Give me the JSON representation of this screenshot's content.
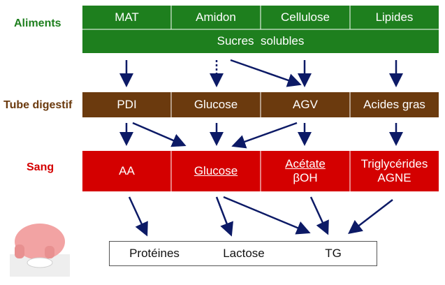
{
  "rows": {
    "aliments": {
      "label": "Aliments",
      "cells": [
        "MAT",
        "Amidon",
        "Cellulose",
        "Lipides"
      ],
      "subcell": "Sucres  solubles"
    },
    "tube": {
      "label": "Tube digestif",
      "cells": [
        "PDI",
        "Glucose",
        "AGV",
        "Acides gras"
      ]
    },
    "sang": {
      "label": "Sang",
      "cells": [
        "AA",
        "Glucose",
        "Acétate",
        "βOH",
        "Triglycérides",
        "AGNE"
      ]
    }
  },
  "products": [
    "Protéines",
    "Lactose",
    "TG"
  ],
  "colors": {
    "aliments": "#1e7f1e",
    "tube": "#6b3a0e",
    "sang": "#d40000",
    "arrow": "#0c1a66",
    "aliments_label": "#1e7f1e",
    "tube_label": "#6b3a0e",
    "sang_label": "#d40000"
  }
}
